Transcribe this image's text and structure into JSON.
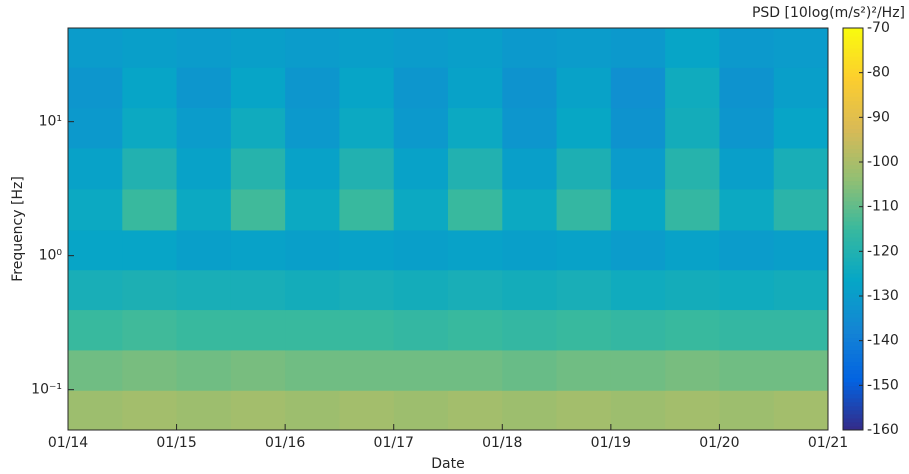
{
  "chart_data": {
    "type": "heatmap",
    "xlabel": "Date",
    "ylabel": "Frequency [Hz]",
    "xticks": [
      "01/14",
      "01/15",
      "01/16",
      "01/17",
      "01/18",
      "01/19",
      "01/20",
      "01/21"
    ],
    "y": [
      0.07,
      0.14,
      0.28,
      0.56,
      1.1,
      2.2,
      4.5,
      9,
      18,
      36
    ],
    "ylim": [
      0.05,
      50
    ],
    "yscale": "log",
    "yticks": [
      {
        "value": 0.1,
        "label": "10⁻¹"
      },
      {
        "value": 1,
        "label": "10⁰"
      },
      {
        "value": 10,
        "label": "10¹"
      }
    ],
    "values": [
      [
        -102,
        -101,
        -102,
        -101,
        -102,
        -101,
        -102,
        -101,
        -102,
        -101,
        -102,
        -101,
        -102,
        -101
      ],
      [
        -108,
        -107,
        -108,
        -107,
        -108,
        -108,
        -108,
        -108,
        -109,
        -108,
        -108,
        -107,
        -108,
        -108
      ],
      [
        -115,
        -114,
        -115,
        -115,
        -115,
        -115,
        -116,
        -115,
        -116,
        -115,
        -116,
        -115,
        -116,
        -116
      ],
      [
        -122,
        -121,
        -122,
        -122,
        -123,
        -122,
        -123,
        -122,
        -123,
        -122,
        -124,
        -123,
        -124,
        -123
      ],
      [
        -127,
        -127,
        -129,
        -128,
        -129,
        -128,
        -129,
        -128,
        -129,
        -128,
        -130,
        -128,
        -130,
        -129
      ],
      [
        -125,
        -115,
        -125,
        -114,
        -125,
        -115,
        -125,
        -115,
        -125,
        -116,
        -126,
        -116,
        -125,
        -118
      ],
      [
        -128,
        -120,
        -128,
        -119,
        -128,
        -120,
        -128,
        -120,
        -129,
        -121,
        -130,
        -119,
        -129,
        -122
      ],
      [
        -131,
        -125,
        -130,
        -124,
        -131,
        -125,
        -131,
        -125,
        -132,
        -126,
        -133,
        -123,
        -132,
        -127
      ],
      [
        -132,
        -127,
        -132,
        -127,
        -132,
        -127,
        -132,
        -128,
        -133,
        -128,
        -134,
        -124,
        -133,
        -129
      ],
      [
        -130,
        -129,
        -130,
        -129,
        -130,
        -129,
        -130,
        -129,
        -131,
        -130,
        -131,
        -127,
        -131,
        -130
      ]
    ],
    "clim": [
      -160,
      -70
    ],
    "cticks": [
      -160,
      -150,
      -140,
      -130,
      -120,
      -110,
      -100,
      -90,
      -80,
      -70
    ],
    "colorbar_label": "PSD [10log(m/s²)²/Hz]"
  }
}
